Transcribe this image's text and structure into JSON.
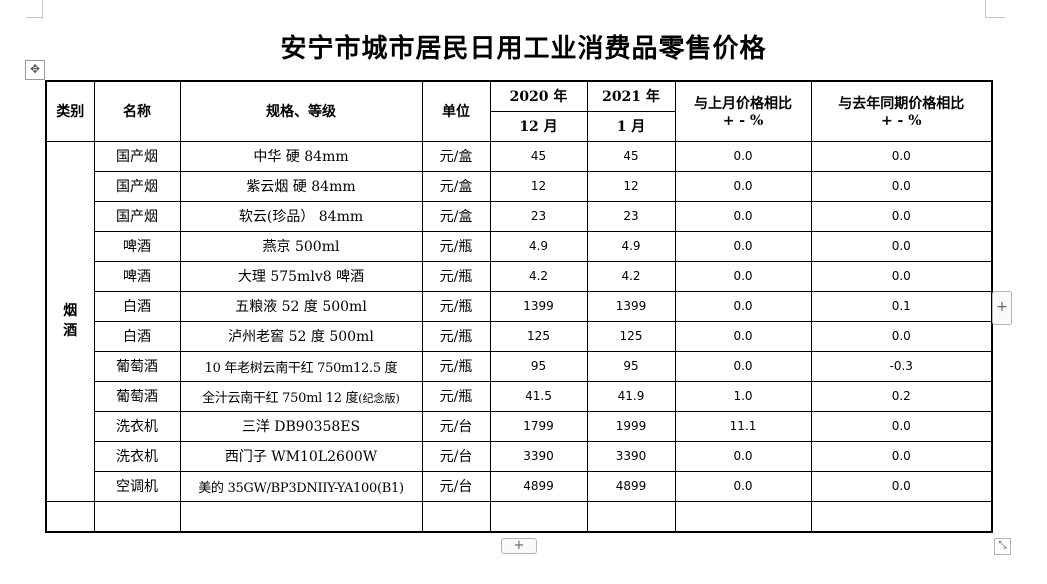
{
  "title": "安宁市城市居民日用工业消费品零售价格",
  "controls": {
    "move_icon": "✥",
    "side_add": "+",
    "bottom_add": "+",
    "resize_icon": "⤡"
  },
  "header": {
    "category": "类别",
    "name": "名称",
    "spec": "规格、等级",
    "unit": "单位",
    "period1_year": "2020 年",
    "period1_month": "12 月",
    "period2_year": "2021 年",
    "period2_month": "1 月",
    "mom_line1": "与上月价格相比",
    "mom_line2": "+ - %",
    "yoy_line1": "与去年同期价格相比",
    "yoy_line2": "+ - %"
  },
  "category": {
    "line1": "烟",
    "line2": "酒"
  },
  "rows": [
    {
      "name": "国产烟",
      "spec": "中华 硬 84mm",
      "unit": "元/盒",
      "dec2020": "45",
      "jan2021": "45",
      "mom": "0.0",
      "yoy": "0.0"
    },
    {
      "name": "国产烟",
      "spec": "紫云烟 硬 84mm",
      "unit": "元/盒",
      "dec2020": "12",
      "jan2021": "12",
      "mom": "0.0",
      "yoy": "0.0"
    },
    {
      "name": "国产烟",
      "spec": "软云(珍品） 84mm",
      "unit": "元/盒",
      "dec2020": "23",
      "jan2021": "23",
      "mom": "0.0",
      "yoy": "0.0"
    },
    {
      "name": "啤酒",
      "spec": "燕京 500ml",
      "unit": "元/瓶",
      "dec2020": "4.9",
      "jan2021": "4.9",
      "mom": "0.0",
      "yoy": "0.0"
    },
    {
      "name": "啤酒",
      "spec": "大理 575mlv8 啤酒",
      "unit": "元/瓶",
      "dec2020": "4.2",
      "jan2021": "4.2",
      "mom": "0.0",
      "yoy": "0.0"
    },
    {
      "name": "白酒",
      "spec": "五粮液 52 度 500ml",
      "unit": "元/瓶",
      "dec2020": "1399",
      "jan2021": "1399",
      "mom": "0.0",
      "yoy": "0.1"
    },
    {
      "name": "白酒",
      "spec": "泸州老窖 52 度 500ml",
      "unit": "元/瓶",
      "dec2020": "125",
      "jan2021": "125",
      "mom": "0.0",
      "yoy": "0.0"
    },
    {
      "name": "葡萄酒",
      "spec": "10 年老树云南干红 750m12.5 度",
      "unit": "元/瓶",
      "dec2020": "95",
      "jan2021": "95",
      "mom": "0.0",
      "yoy": "-0.3"
    },
    {
      "name": "葡萄酒",
      "spec": "全汁云南干红 750ml 12 度",
      "spec_note": "(纪念版)",
      "unit": "元/瓶",
      "dec2020": "41.5",
      "jan2021": "41.9",
      "mom": "1.0",
      "yoy": "0.2"
    },
    {
      "name": "洗衣机",
      "spec": "三洋 DB90358ES",
      "unit": "元/台",
      "dec2020": "1799",
      "jan2021": "1999",
      "mom": "11.1",
      "yoy": "0.0"
    },
    {
      "name": "洗衣机",
      "spec": "西门子 WM10L2600W",
      "unit": "元/台",
      "dec2020": "3390",
      "jan2021": "3390",
      "mom": "0.0",
      "yoy": "0.0"
    },
    {
      "name": "空调机",
      "spec": "美的 35GW/BP3DNIIY-YA100(B1)",
      "unit": "元/台",
      "dec2020": "4899",
      "jan2021": "4899",
      "mom": "0.0",
      "yoy": "0.0"
    }
  ]
}
